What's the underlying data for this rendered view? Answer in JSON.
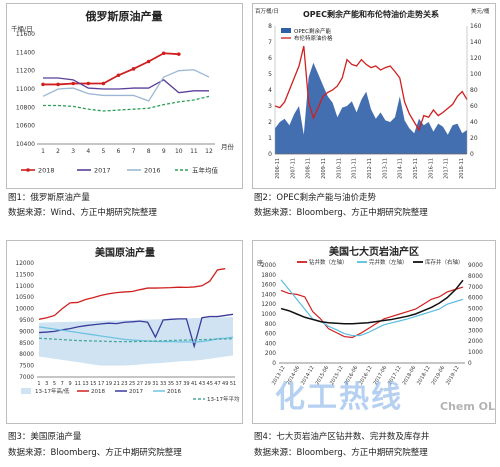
{
  "chart_data": [
    {
      "type": "line",
      "title": "俄罗斯原油产量",
      "ylabel": "千桶/日",
      "xlabel": "月份",
      "x": [
        1,
        2,
        3,
        4,
        5,
        6,
        7,
        8,
        9,
        10,
        11,
        12
      ],
      "ylim": [
        10400,
        11600
      ],
      "yticks": [
        10400,
        10600,
        10800,
        11000,
        11200,
        11400,
        11600
      ],
      "series": [
        {
          "name": "2018",
          "color": "#d01f1f",
          "style": "solid-marker",
          "values": [
            11050,
            11050,
            11060,
            11060,
            11060,
            11150,
            11220,
            11300,
            11390,
            11380,
            null,
            null
          ]
        },
        {
          "name": "2017",
          "color": "#5b3f9a",
          "style": "solid",
          "values": [
            11120,
            11120,
            11100,
            11010,
            11000,
            11000,
            11010,
            11010,
            11100,
            10960,
            10980,
            10980
          ]
        },
        {
          "name": "2016",
          "color": "#9bb7d4",
          "style": "solid",
          "values": [
            10920,
            11000,
            11010,
            10950,
            10930,
            10930,
            10930,
            10870,
            11130,
            11200,
            11210,
            11130
          ]
        },
        {
          "name": "五年均值",
          "color": "#2e9e5b",
          "style": "dashed",
          "values": [
            10820,
            10820,
            10810,
            10780,
            10760,
            10770,
            10780,
            10790,
            10830,
            10860,
            10880,
            10920
          ]
        }
      ],
      "legend_position": "bottom"
    },
    {
      "type": "bar",
      "title": "OPEC剩余产能和布伦特油价走势关系",
      "ylabel_left": "百万桶/日",
      "ylabel_right": "美元/桶",
      "yticks_left": [
        0,
        1,
        2,
        3,
        4,
        5,
        6,
        7,
        8
      ],
      "yticks_right": [
        0,
        20,
        40,
        60,
        80,
        100,
        120,
        140,
        160
      ],
      "x_ticks": [
        "2006-11",
        "2007-11",
        "2008-11",
        "2009-11",
        "2010-11",
        "2011-11",
        "2012-11",
        "2013-11",
        "2014-11",
        "2015-11",
        "2016-11",
        "2017-11",
        "2018-11"
      ],
      "series": [
        {
          "name": "OPEC剩余产能",
          "color": "#2f5fa8",
          "type": "area",
          "values": [
            1.6,
            2.0,
            2.2,
            1.8,
            2.5,
            3.0,
            1.2,
            4.8,
            5.7,
            5.0,
            4.3,
            3.6,
            3.2,
            2.3,
            2.9,
            3.0,
            3.3,
            2.6,
            3.4,
            3.9,
            2.8,
            2.2,
            2.6,
            2.1,
            2.0,
            2.3,
            3.6,
            2.1,
            1.6,
            1.3,
            2.2,
            1.8,
            2.0,
            1.4,
            1.9,
            1.7,
            1.2,
            1.8,
            1.9,
            1.3,
            1.5
          ]
        },
        {
          "name": "布伦特原油价格",
          "color": "#d01f1f",
          "type": "line",
          "values": [
            60,
            58,
            65,
            80,
            95,
            110,
            135,
            65,
            45,
            58,
            72,
            77,
            80,
            85,
            95,
            118,
            112,
            110,
            118,
            112,
            108,
            110,
            105,
            108,
            110,
            103,
            95,
            65,
            50,
            40,
            30,
            48,
            46,
            55,
            48,
            52,
            57,
            62,
            72,
            78,
            68
          ]
        }
      ],
      "legend_position": "top-left"
    },
    {
      "type": "line",
      "title": "美国原油产量",
      "x_ticks": [
        1,
        3,
        5,
        7,
        9,
        11,
        13,
        15,
        17,
        19,
        21,
        23,
        25,
        27,
        29,
        31,
        33,
        35,
        37,
        39,
        41,
        43,
        45,
        47,
        49,
        51
      ],
      "ylim": [
        7000,
        12000
      ],
      "yticks": [
        7000,
        7500,
        8000,
        8500,
        9000,
        9500,
        10000,
        10500,
        11000,
        11500,
        12000
      ],
      "series": [
        {
          "name": "13-17年高/低",
          "color": "#cfe3f2",
          "type": "band",
          "upper": [
            9380,
            9390,
            9400,
            9410,
            9420,
            9430,
            9440,
            9450,
            9460,
            9470,
            9480,
            9490,
            9500,
            9510,
            9520,
            9530,
            9540,
            9550,
            9560,
            9570,
            9580,
            9590,
            9600,
            9610,
            9620,
            9630
          ],
          "lower": [
            7900,
            7850,
            7800,
            7750,
            7700,
            7650,
            7600,
            7550,
            7500,
            7500,
            7500,
            7500,
            7520,
            7550,
            7580,
            7600,
            7620,
            7650,
            7680,
            7700,
            7720,
            7750,
            7800,
            7850,
            7900,
            7950
          ]
        },
        {
          "name": "2018",
          "color": "#d01f1f",
          "type": "line",
          "values": [
            9530,
            9600,
            9700,
            10000,
            10250,
            10270,
            10400,
            10480,
            10580,
            10650,
            10700,
            10730,
            10750,
            10830,
            10900,
            10900,
            10910,
            10920,
            10940,
            10930,
            10950,
            11000,
            11200,
            11700,
            11750,
            null
          ]
        },
        {
          "name": "2017",
          "color": "#3b3b9a",
          "type": "line",
          "values": [
            8950,
            8970,
            9000,
            9070,
            9120,
            9200,
            9250,
            9290,
            9330,
            9360,
            9340,
            9400,
            9420,
            9450,
            9400,
            8750,
            9500,
            9530,
            9550,
            9550,
            8350,
            9600,
            9650,
            9650,
            9700,
            9750
          ]
        },
        {
          "name": "2016",
          "color": "#6fc3e0",
          "type": "line",
          "values": [
            9200,
            9150,
            9100,
            9050,
            9000,
            8950,
            8900,
            8850,
            8800,
            8750,
            8700,
            8650,
            8620,
            8600,
            8580,
            8560,
            8550,
            8550,
            8540,
            8540,
            8530,
            8560,
            8600,
            8680,
            8700,
            8750
          ]
        },
        {
          "name": "13-17年平均",
          "color": "#4aa7a0",
          "type": "dashed",
          "values": [
            8700,
            8680,
            8660,
            8640,
            8620,
            8600,
            8590,
            8580,
            8570,
            8560,
            8550,
            8550,
            8550,
            8560,
            8570,
            8580,
            8590,
            8600,
            8610,
            8620,
            8630,
            8640,
            8650,
            8660,
            8670,
            8680
          ]
        }
      ],
      "legend_position": "bottom"
    },
    {
      "type": "line",
      "title": "美国七大页岩油产区",
      "ylabel_left": "座",
      "yticks_left": [
        0,
        200,
        400,
        600,
        800,
        1000,
        1200,
        1400,
        1600,
        1800,
        2000
      ],
      "yticks_right": [
        0,
        1000,
        2000,
        3000,
        4000,
        5000,
        6000,
        7000,
        8000,
        9000
      ],
      "x_ticks": [
        "2013-12",
        "2014-06",
        "2014-12",
        "2015-06",
        "2015-12",
        "2016-06",
        "2016-12",
        "2017-06",
        "2017-12",
        "2018-06",
        "2018-12",
        "2019-06",
        "2019-12"
      ],
      "series": [
        {
          "name": "钻井数（左轴）",
          "color": "#d01f1f",
          "axis": "left",
          "values": [
            1480,
            1420,
            1400,
            1350,
            1050,
            900,
            700,
            620,
            540,
            520,
            600,
            700,
            800,
            900,
            950,
            1000,
            1050,
            1100,
            1200,
            1300,
            1350,
            1450,
            1500,
            1550
          ]
        },
        {
          "name": "完井数（左轴）",
          "color": "#5bbde0",
          "axis": "left",
          "values": [
            1700,
            1500,
            1300,
            1100,
            900,
            850,
            750,
            680,
            600,
            560,
            560,
            620,
            700,
            780,
            820,
            860,
            900,
            950,
            1000,
            1050,
            1100,
            1200,
            1250,
            1300
          ]
        },
        {
          "name": "库存井（右轴）",
          "color": "#111111",
          "axis": "right",
          "values": [
            5000,
            4800,
            4500,
            4200,
            4000,
            3800,
            3700,
            3650,
            3600,
            3600,
            3650,
            3700,
            3800,
            3900,
            4000,
            4150,
            4300,
            4500,
            4800,
            5100,
            5500,
            6000,
            6700,
            7600
          ]
        }
      ],
      "legend_position": "top"
    }
  ],
  "captions": {
    "c1_title": "图1：俄罗斯原油产量",
    "c1_source": "数据来源：Wind、方正中期研究院整理",
    "c2_title": "图2：OPEC剩余产能与油价走势",
    "c2_source": "数据来源：Bloomberg、方正中期研究院整理",
    "c3_title": "图3：美国原油产量",
    "c3_source": "数据来源：Bloomberg、方正中期研究院整理",
    "c4_title": "图4：七大页岩油产区钻井数、完井数及库存井",
    "c4_source": "数据来源：Bloomberg、方正中期研究院整理"
  },
  "watermark": {
    "text": "化工热线",
    "logo": "Chem OL"
  }
}
